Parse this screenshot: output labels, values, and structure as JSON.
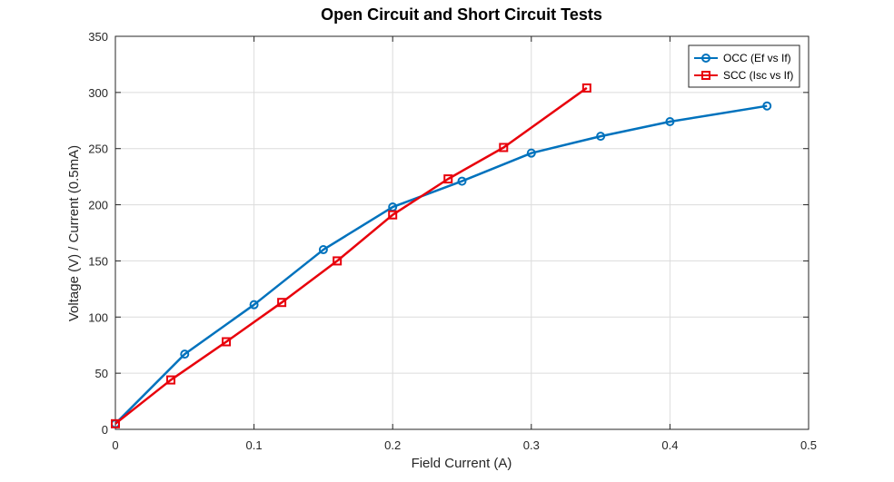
{
  "chart_data": {
    "type": "line",
    "title": "Open Circuit and Short Circuit Tests",
    "xlabel": "Field Current (A)",
    "ylabel": "Voltage (V) / Current (0.5mA)",
    "xlim": [
      0,
      0.5
    ],
    "ylim": [
      0,
      350
    ],
    "xticks": [
      0,
      0.1,
      0.2,
      0.3,
      0.4,
      0.5
    ],
    "xtick_labels": [
      "0",
      "0.1",
      "0.2",
      "0.3",
      "0.4",
      "0.5"
    ],
    "yticks": [
      0,
      50,
      100,
      150,
      200,
      250,
      300,
      350
    ],
    "ytick_labels": [
      "0",
      "50",
      "100",
      "150",
      "200",
      "250",
      "300",
      "350"
    ],
    "grid": true,
    "legend_position": "top-right",
    "series": [
      {
        "name": "OCC (Ef vs If)",
        "color": "#0072BD",
        "marker": "circle",
        "x": [
          0,
          0.05,
          0.1,
          0.15,
          0.2,
          0.25,
          0.3,
          0.35,
          0.4,
          0.47
        ],
        "y": [
          5,
          67,
          111,
          160,
          198,
          221,
          246,
          261,
          274,
          288
        ]
      },
      {
        "name": "SCC (Isc vs If)",
        "color": "#E8000B",
        "marker": "square",
        "x": [
          0,
          0.04,
          0.08,
          0.12,
          0.16,
          0.2,
          0.24,
          0.28,
          0.34
        ],
        "y": [
          5,
          44,
          78,
          113,
          150,
          191,
          223,
          251,
          304
        ]
      }
    ]
  }
}
